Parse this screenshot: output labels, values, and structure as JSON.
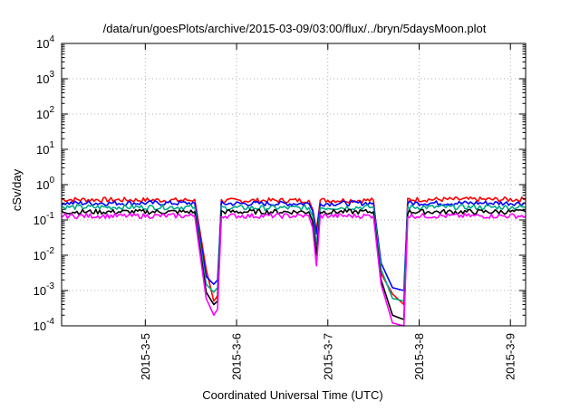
{
  "chart_data": {
    "type": "line",
    "title": "/data/run/goesPlots/archive/2015-03-09/03:00/flux/../bryn/5daysMoon.plot",
    "xlabel": "Coordinated Universal Time (UTC)",
    "ylabel": "cSv/day",
    "y_scale": "log",
    "ylim": [
      0.0001,
      10000
    ],
    "xlim": [
      "2015-03-04 02:00",
      "2015-03-09 04:00"
    ],
    "y_ticks": [
      {
        "base": "10",
        "exp": "-4",
        "value": 0.0001
      },
      {
        "base": "10",
        "exp": "-3",
        "value": 0.001
      },
      {
        "base": "10",
        "exp": "-2",
        "value": 0.01
      },
      {
        "base": "10",
        "exp": "-1",
        "value": 0.1
      },
      {
        "base": "10",
        "exp": "0",
        "value": 1
      },
      {
        "base": "10",
        "exp": "1",
        "value": 10
      },
      {
        "base": "10",
        "exp": "2",
        "value": 100
      },
      {
        "base": "10",
        "exp": "3",
        "value": 1000
      },
      {
        "base": "10",
        "exp": "4",
        "value": 10000
      }
    ],
    "x_ticks": [
      {
        "label": "2015-3-5",
        "value": "2015-03-05 00:00"
      },
      {
        "label": "2015-3-6",
        "value": "2015-03-06 00:00"
      },
      {
        "label": "2015-3-7",
        "value": "2015-03-07 00:00"
      },
      {
        "label": "2015-3-8",
        "value": "2015-03-08 00:00"
      },
      {
        "label": "2015-3-9",
        "value": "2015-03-09 00:00"
      }
    ],
    "grid": true,
    "legend": "none",
    "series": [
      {
        "color": "#ff0000",
        "points": [
          [
            "2015-03-04 02:00",
            0.38
          ],
          [
            "2015-03-05 10:00",
            0.36
          ],
          [
            "2015-03-05 13:00",
            0.38
          ],
          [
            "2015-03-05 16:00",
            0.004
          ],
          [
            "2015-03-05 18:00",
            0.0005
          ],
          [
            "2015-03-05 19:00",
            0.0007
          ],
          [
            "2015-03-05 20:00",
            0.35
          ],
          [
            "2015-03-06 19:00",
            0.36
          ],
          [
            "2015-03-06 20:00",
            0.2
          ],
          [
            "2015-03-06 21:00",
            0.05
          ],
          [
            "2015-03-06 22:00",
            0.36
          ],
          [
            "2015-03-07 12:00",
            0.36
          ],
          [
            "2015-03-07 14:00",
            0.003
          ],
          [
            "2015-03-07 17:00",
            0.0008
          ],
          [
            "2015-03-07 20:00",
            0.0004
          ],
          [
            "2015-03-07 21:00",
            0.38
          ],
          [
            "2015-03-09 04:00",
            0.38
          ]
        ]
      },
      {
        "color": "#0000ff",
        "points": [
          [
            "2015-03-04 02:00",
            0.3
          ],
          [
            "2015-03-05 10:00",
            0.3
          ],
          [
            "2015-03-05 13:00",
            0.3
          ],
          [
            "2015-03-05 16:00",
            0.0025
          ],
          [
            "2015-03-05 18:00",
            0.0015
          ],
          [
            "2015-03-05 19:00",
            0.002
          ],
          [
            "2015-03-05 20:00",
            0.29
          ],
          [
            "2015-03-06 19:00",
            0.29
          ],
          [
            "2015-03-06 20:00",
            0.18
          ],
          [
            "2015-03-06 21:00",
            0.04
          ],
          [
            "2015-03-06 22:00",
            0.29
          ],
          [
            "2015-03-07 12:00",
            0.3
          ],
          [
            "2015-03-07 14:00",
            0.006
          ],
          [
            "2015-03-07 17:00",
            0.0012
          ],
          [
            "2015-03-07 20:00",
            0.001
          ],
          [
            "2015-03-07 21:00",
            0.3
          ],
          [
            "2015-03-09 04:00",
            0.3
          ]
        ]
      },
      {
        "color": "#00aa88",
        "points": [
          [
            "2015-03-04 02:00",
            0.23
          ],
          [
            "2015-03-05 10:00",
            0.23
          ],
          [
            "2015-03-05 13:00",
            0.23
          ],
          [
            "2015-03-05 16:00",
            0.0015
          ],
          [
            "2015-03-05 18:00",
            0.0009
          ],
          [
            "2015-03-05 19:00",
            0.0012
          ],
          [
            "2015-03-05 20:00",
            0.22
          ],
          [
            "2015-03-06 19:00",
            0.22
          ],
          [
            "2015-03-06 20:00",
            0.13
          ],
          [
            "2015-03-06 21:00",
            0.02
          ],
          [
            "2015-03-06 22:00",
            0.22
          ],
          [
            "2015-03-07 12:00",
            0.23
          ],
          [
            "2015-03-07 14:00",
            0.004
          ],
          [
            "2015-03-07 17:00",
            0.0006
          ],
          [
            "2015-03-07 20:00",
            0.0005
          ],
          [
            "2015-03-07 21:00",
            0.23
          ],
          [
            "2015-03-09 04:00",
            0.23
          ]
        ]
      },
      {
        "color": "#000000",
        "points": [
          [
            "2015-03-04 02:00",
            0.17
          ],
          [
            "2015-03-05 10:00",
            0.17
          ],
          [
            "2015-03-05 13:00",
            0.17
          ],
          [
            "2015-03-05 16:00",
            0.0009
          ],
          [
            "2015-03-05 18:00",
            0.0004
          ],
          [
            "2015-03-05 19:00",
            0.0005
          ],
          [
            "2015-03-05 20:00",
            0.17
          ],
          [
            "2015-03-06 19:00",
            0.17
          ],
          [
            "2015-03-06 20:00",
            0.09
          ],
          [
            "2015-03-06 21:00",
            0.01
          ],
          [
            "2015-03-06 22:00",
            0.17
          ],
          [
            "2015-03-07 12:00",
            0.17
          ],
          [
            "2015-03-07 14:00",
            0.002
          ],
          [
            "2015-03-07 17:00",
            0.0002
          ],
          [
            "2015-03-07 20:00",
            0.00015
          ],
          [
            "2015-03-07 21:00",
            0.17
          ],
          [
            "2015-03-09 04:00",
            0.17
          ]
        ]
      },
      {
        "color": "#ff00ff",
        "points": [
          [
            "2015-03-04 02:00",
            0.13
          ],
          [
            "2015-03-05 10:00",
            0.13
          ],
          [
            "2015-03-05 13:00",
            0.13
          ],
          [
            "2015-03-05 16:00",
            0.0006
          ],
          [
            "2015-03-05 18:00",
            0.0002
          ],
          [
            "2015-03-05 19:00",
            0.0003
          ],
          [
            "2015-03-05 20:00",
            0.13
          ],
          [
            "2015-03-06 19:00",
            0.13
          ],
          [
            "2015-03-06 20:00",
            0.06
          ],
          [
            "2015-03-06 21:00",
            0.005
          ],
          [
            "2015-03-06 22:00",
            0.13
          ],
          [
            "2015-03-07 12:00",
            0.13
          ],
          [
            "2015-03-07 14:00",
            0.0015
          ],
          [
            "2015-03-07 17:00",
            0.00012
          ],
          [
            "2015-03-07 20:00",
            0.0001
          ],
          [
            "2015-03-07 21:00",
            0.13
          ],
          [
            "2015-03-09 04:00",
            0.13
          ]
        ]
      }
    ]
  }
}
